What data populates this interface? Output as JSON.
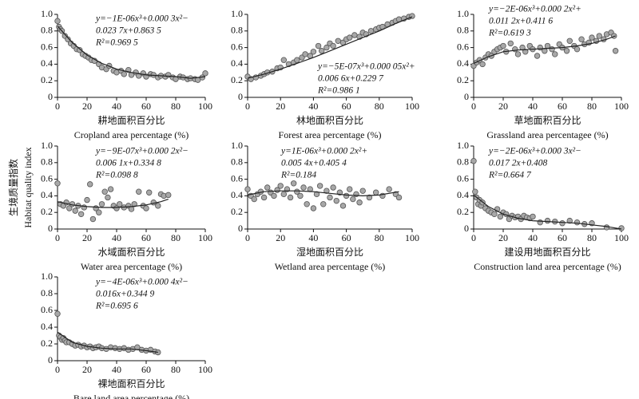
{
  "chart_data": [
    {
      "type": "scatter",
      "xlabel": "耕地面积百分比",
      "xlabel_en": "Cropland area percentage (%)",
      "equation": [
        "y=−1E-06x³+0.000 3x²−",
        "0.023 7x+0.863 5",
        "R²=0.969 5"
      ],
      "xlim": [
        0,
        100
      ],
      "xticks": [
        0,
        20,
        40,
        60,
        80,
        100
      ],
      "ylim": [
        0,
        1
      ],
      "yticks": [
        0,
        0.2,
        0.4,
        0.6,
        0.8,
        {
          "value": 1,
          "label": "1.0"
        }
      ],
      "x": [
        0,
        1,
        2,
        3,
        5,
        7,
        9,
        11,
        13,
        15,
        17,
        19,
        21,
        23,
        25,
        28,
        30,
        33,
        35,
        38,
        40,
        43,
        45,
        48,
        50,
        53,
        55,
        58,
        60,
        63,
        65,
        68,
        70,
        73,
        75,
        78,
        80,
        83,
        85,
        88,
        90,
        93,
        95,
        98,
        100
      ],
      "values": [
        0.92,
        0.85,
        0.82,
        0.8,
        0.74,
        0.7,
        0.65,
        0.62,
        0.58,
        0.57,
        0.52,
        0.5,
        0.48,
        0.45,
        0.44,
        0.4,
        0.36,
        0.34,
        0.38,
        0.32,
        0.3,
        0.32,
        0.28,
        0.33,
        0.27,
        0.3,
        0.26,
        0.29,
        0.25,
        0.28,
        0.27,
        0.24,
        0.26,
        0.25,
        0.27,
        0.24,
        0.22,
        0.25,
        0.24,
        0.22,
        0.23,
        0.22,
        0.21,
        0.24,
        0.29
      ],
      "fit": {
        "x": [
          0,
          10,
          20,
          30,
          40,
          50,
          60,
          70,
          80,
          90,
          100
        ],
        "values": [
          0.86,
          0.66,
          0.51,
          0.41,
          0.34,
          0.3,
          0.27,
          0.26,
          0.25,
          0.23,
          0.25
        ]
      }
    },
    {
      "type": "scatter",
      "xlabel": "林地面积百分比",
      "xlabel_en": "Forest area percentage (%)",
      "equation": [
        "y=−5E-07x³+0.000 05x²+",
        "0.006 6x+0.229 7",
        "R²=0.986 1"
      ],
      "xlim": [
        0,
        100
      ],
      "xticks": [
        0,
        20,
        40,
        60,
        80,
        100
      ],
      "ylim": [
        0,
        1
      ],
      "yticks": [
        0,
        0.2,
        0.4,
        0.6,
        0.8,
        {
          "value": 1,
          "label": "1.0"
        }
      ],
      "x": [
        0,
        2,
        5,
        8,
        10,
        12,
        15,
        18,
        20,
        22,
        25,
        28,
        30,
        33,
        35,
        38,
        40,
        43,
        45,
        48,
        50,
        52,
        55,
        58,
        60,
        62,
        65,
        68,
        70,
        72,
        75,
        78,
        80,
        82,
        85,
        88,
        90,
        92,
        95,
        98,
        100
      ],
      "values": [
        0.25,
        0.22,
        0.24,
        0.26,
        0.28,
        0.3,
        0.31,
        0.35,
        0.36,
        0.45,
        0.4,
        0.42,
        0.45,
        0.48,
        0.52,
        0.5,
        0.55,
        0.62,
        0.56,
        0.6,
        0.65,
        0.62,
        0.68,
        0.66,
        0.7,
        0.72,
        0.75,
        0.73,
        0.78,
        0.76,
        0.8,
        0.82,
        0.84,
        0.85,
        0.88,
        0.9,
        0.92,
        0.94,
        0.95,
        0.97,
        0.98
      ],
      "fit": {
        "x": [
          0,
          10,
          20,
          30,
          40,
          50,
          60,
          70,
          80,
          90,
          100
        ],
        "values": [
          0.23,
          0.28,
          0.34,
          0.41,
          0.48,
          0.56,
          0.64,
          0.72,
          0.8,
          0.89,
          0.97
        ]
      }
    },
    {
      "type": "scatter",
      "xlabel": "草地面积百分比",
      "xlabel_en": "Grassland area percentagee (%)",
      "equation": [
        "y=−2E-06x³+0.000 2x²+",
        "0.011 2x+0.411 6",
        "R²=0.619 3"
      ],
      "xlim": [
        0,
        100
      ],
      "xticks": [
        0,
        20,
        40,
        60,
        80,
        100
      ],
      "ylim": [
        0,
        1
      ],
      "yticks": [
        0,
        0.2,
        0.4,
        0.6,
        0.8,
        {
          "value": 1,
          "label": "1.0"
        }
      ],
      "x": [
        0,
        2,
        4,
        6,
        8,
        10,
        12,
        14,
        16,
        18,
        20,
        22,
        25,
        28,
        30,
        33,
        35,
        38,
        40,
        43,
        45,
        48,
        50,
        53,
        55,
        58,
        60,
        63,
        65,
        68,
        70,
        73,
        75,
        78,
        80,
        83,
        85,
        88,
        90,
        93,
        95,
        96
      ],
      "values": [
        0.38,
        0.42,
        0.45,
        0.4,
        0.48,
        0.52,
        0.5,
        0.55,
        0.58,
        0.6,
        0.62,
        0.55,
        0.65,
        0.58,
        0.52,
        0.6,
        0.55,
        0.62,
        0.58,
        0.5,
        0.6,
        0.56,
        0.62,
        0.58,
        0.52,
        0.64,
        0.6,
        0.56,
        0.68,
        0.62,
        0.58,
        0.7,
        0.64,
        0.66,
        0.72,
        0.68,
        0.74,
        0.7,
        0.76,
        0.78,
        0.74,
        0.56
      ],
      "fit": {
        "x": [
          0,
          10,
          20,
          30,
          40,
          50,
          60,
          70,
          80,
          90,
          96
        ],
        "values": [
          0.41,
          0.49,
          0.55,
          0.57,
          0.58,
          0.59,
          0.6,
          0.62,
          0.65,
          0.7,
          0.74
        ]
      }
    },
    {
      "type": "scatter",
      "xlabel": "水域面积百分比",
      "xlabel_en": "Water area percentage (%)",
      "ylabel": "生境质量指数",
      "ylabel_en": "Habitat quality index",
      "equation": [
        "y=−9E-07x³+0.000 2x²−",
        "0.006 1x+0.334 8",
        "R²=0.098 8"
      ],
      "xlim": [
        0,
        100
      ],
      "xticks": [
        0,
        20,
        40,
        60,
        80,
        100
      ],
      "ylim": [
        0,
        1
      ],
      "yticks": [
        0,
        0.2,
        0.4,
        0.6,
        0.8,
        {
          "value": 1,
          "label": "1.0"
        }
      ],
      "x": [
        0,
        2,
        4,
        6,
        8,
        10,
        12,
        14,
        16,
        18,
        20,
        22,
        24,
        26,
        28,
        30,
        32,
        34,
        36,
        38,
        40,
        42,
        45,
        48,
        50,
        52,
        55,
        58,
        60,
        62,
        65,
        68,
        70,
        72,
        75
      ],
      "values": [
        0.55,
        0.3,
        0.28,
        0.32,
        0.25,
        0.3,
        0.22,
        0.28,
        0.18,
        0.26,
        0.35,
        0.54,
        0.12,
        0.25,
        0.2,
        0.3,
        0.45,
        0.38,
        0.48,
        0.28,
        0.25,
        0.3,
        0.26,
        0.28,
        0.24,
        0.3,
        0.45,
        0.28,
        0.25,
        0.44,
        0.32,
        0.28,
        0.42,
        0.4,
        0.41
      ],
      "fit": {
        "x": [
          0,
          10,
          20,
          30,
          40,
          50,
          60,
          70,
          75
        ],
        "values": [
          0.33,
          0.29,
          0.27,
          0.26,
          0.26,
          0.27,
          0.29,
          0.33,
          0.36
        ]
      }
    },
    {
      "type": "scatter",
      "xlabel": "湿地面积百分比",
      "xlabel_en": "Wetland area percentage (%)",
      "equation": [
        "y=1E-06x³+0.000 2x²+",
        "0.005 4x+0.405 4",
        "R²=0.184"
      ],
      "xlim": [
        0,
        100
      ],
      "xticks": [
        0,
        20,
        40,
        60,
        80,
        100
      ],
      "ylim": [
        0,
        1
      ],
      "yticks": [
        0,
        0.2,
        0.4,
        0.6,
        0.8,
        {
          "value": 1,
          "label": "1.0"
        }
      ],
      "x": [
        0,
        2,
        4,
        6,
        8,
        10,
        12,
        14,
        16,
        18,
        20,
        22,
        24,
        26,
        28,
        30,
        32,
        34,
        36,
        38,
        40,
        42,
        44,
        46,
        48,
        50,
        52,
        54,
        56,
        58,
        60,
        62,
        64,
        66,
        68,
        70,
        74,
        78,
        82,
        86,
        90,
        92
      ],
      "values": [
        0.48,
        0.4,
        0.36,
        0.42,
        0.45,
        0.38,
        0.5,
        0.44,
        0.4,
        0.47,
        0.52,
        0.42,
        0.48,
        0.38,
        0.55,
        0.45,
        0.4,
        0.5,
        0.3,
        0.48,
        0.25,
        0.42,
        0.52,
        0.3,
        0.46,
        0.38,
        0.5,
        0.34,
        0.44,
        0.28,
        0.4,
        0.48,
        0.36,
        0.42,
        0.32,
        0.46,
        0.38,
        0.44,
        0.4,
        0.48,
        0.42,
        0.38
      ],
      "fit": {
        "x": [
          0,
          10,
          20,
          30,
          40,
          50,
          60,
          70,
          80,
          92
        ],
        "values": [
          0.41,
          0.45,
          0.46,
          0.46,
          0.45,
          0.43,
          0.41,
          0.4,
          0.41,
          0.45
        ]
      }
    },
    {
      "type": "scatter",
      "xlabel": "建设用地面积百分比",
      "xlabel_en": "Construction land area percentage (%)",
      "equation": [
        "y=−2E-06x³+0.000 3x²−",
        "0.017 2x+0.408",
        "R²=0.664 7"
      ],
      "xlim": [
        0,
        100
      ],
      "xticks": [
        0,
        20,
        40,
        60,
        80,
        100
      ],
      "ylim": [
        0,
        1
      ],
      "yticks": [
        0,
        0.2,
        0.4,
        0.6,
        0.8,
        {
          "value": 1,
          "label": "1.0"
        }
      ],
      "x": [
        0,
        1,
        2,
        3,
        4,
        5,
        6,
        8,
        10,
        12,
        14,
        16,
        18,
        20,
        22,
        24,
        26,
        28,
        30,
        32,
        34,
        36,
        38,
        40,
        45,
        50,
        55,
        60,
        65,
        70,
        75,
        80,
        90,
        100
      ],
      "values": [
        0.82,
        0.45,
        0.38,
        0.3,
        0.35,
        0.28,
        0.32,
        0.25,
        0.22,
        0.2,
        0.18,
        0.24,
        0.15,
        0.2,
        0.18,
        0.12,
        0.16,
        0.14,
        0.15,
        0.12,
        0.16,
        0.14,
        0.13,
        0.15,
        0.08,
        0.1,
        0.09,
        0.07,
        0.1,
        0.08,
        0.06,
        0.07,
        0.02,
        0.01
      ],
      "fit": {
        "x": [
          0,
          10,
          20,
          30,
          40,
          50,
          60,
          70,
          80,
          90,
          100
        ],
        "values": [
          0.41,
          0.27,
          0.18,
          0.13,
          0.1,
          0.09,
          0.08,
          0.07,
          0.05,
          0.03,
          0.0
        ]
      }
    },
    {
      "type": "scatter",
      "xlabel": "裸地面积百分比",
      "xlabel_en": "Bare land area percentage (%)",
      "equation": [
        "y=−4E-06x³+0.000 4x²−",
        "0.016x+0.344 9",
        "R²=0.695 6"
      ],
      "xlim": [
        0,
        100
      ],
      "xticks": [
        0,
        20,
        40,
        60,
        80,
        100
      ],
      "ylim": [
        0,
        1
      ],
      "yticks": [
        0,
        0.2,
        0.4,
        0.6,
        0.8,
        {
          "value": 1,
          "label": "1.0"
        }
      ],
      "x": [
        0,
        1,
        2,
        3,
        4,
        5,
        6,
        8,
        10,
        12,
        14,
        16,
        18,
        20,
        22,
        24,
        26,
        28,
        30,
        33,
        36,
        39,
        42,
        45,
        48,
        51,
        54,
        57,
        60,
        63,
        66,
        68
      ],
      "values": [
        0.56,
        0.3,
        0.28,
        0.25,
        0.27,
        0.24,
        0.22,
        0.22,
        0.2,
        0.18,
        0.19,
        0.17,
        0.18,
        0.16,
        0.17,
        0.15,
        0.16,
        0.17,
        0.15,
        0.14,
        0.16,
        0.15,
        0.14,
        0.15,
        0.13,
        0.14,
        0.16,
        0.13,
        0.12,
        0.13,
        0.11,
        0.1
      ],
      "fit": {
        "x": [
          0,
          10,
          20,
          30,
          40,
          50,
          60,
          68
        ],
        "values": [
          0.34,
          0.22,
          0.17,
          0.15,
          0.14,
          0.14,
          0.12,
          0.1
        ]
      }
    }
  ]
}
